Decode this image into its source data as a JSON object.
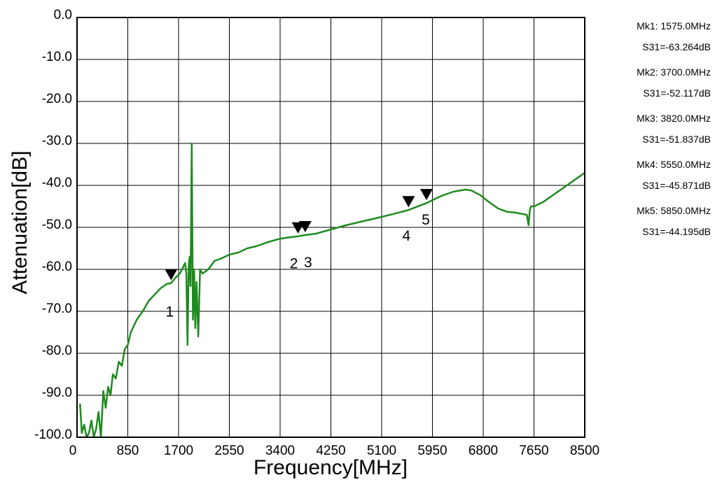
{
  "chart_data": {
    "type": "line",
    "xlabel": "Frequency[MHz]",
    "ylabel": "Attenuation[dB]",
    "xlim": [
      0,
      8500
    ],
    "ylim": [
      -100,
      0
    ],
    "x_ticks": [
      0,
      850,
      1700,
      2550,
      3400,
      4250,
      5100,
      5950,
      6800,
      7650,
      8500
    ],
    "x_tick_labels": [
      "0",
      "850",
      "1700",
      "2550",
      "3400",
      "4250",
      "5100",
      "5950",
      "6800",
      "7650",
      "8500"
    ],
    "y_ticks": [
      0,
      -10,
      -20,
      -30,
      -40,
      -50,
      -60,
      -70,
      -80,
      -90,
      -100
    ],
    "y_tick_labels": [
      "0.0",
      "-10.0",
      "-20.0",
      "-30.0",
      "-40.0",
      "-50.0",
      "-60.0",
      "-70.0",
      "-80.0",
      "-90.0",
      "-100.0"
    ],
    "grid": true,
    "series_color": "#1f8a1f",
    "series": [
      {
        "x": [
          50,
          80,
          120,
          160,
          200,
          240,
          280,
          320,
          360,
          400,
          440,
          480,
          520,
          560,
          600,
          650,
          700,
          750,
          800,
          850,
          900,
          1000,
          1100,
          1200,
          1300,
          1400,
          1500,
          1575,
          1650,
          1720,
          1760,
          1790,
          1810,
          1830,
          1850,
          1870,
          1885,
          1900,
          1920,
          1940,
          1960,
          1980,
          2000,
          2030,
          2060,
          2100,
          2200,
          2300,
          2400,
          2550,
          2700,
          2850,
          3000,
          3200,
          3400,
          3600,
          3700,
          3820,
          4000,
          4250,
          4500,
          4800,
          5100,
          5300,
          5550,
          5850,
          6100,
          6300,
          6500,
          6600,
          6750,
          6900,
          7050,
          7200,
          7350,
          7450,
          7530,
          7560,
          7580,
          7600,
          7650,
          7800,
          8000,
          8200,
          8400,
          8500
        ],
        "y": [
          -92,
          -99,
          -97,
          -100,
          -99,
          -96,
          -100,
          -98,
          -94,
          -100,
          -89,
          -93,
          -88,
          -90,
          -85,
          -86,
          -82,
          -83,
          -79,
          -78,
          -75,
          -72,
          -70,
          -67.5,
          -66,
          -64.5,
          -63.5,
          -63.264,
          -62,
          -61,
          -60,
          -59,
          -58.5,
          -61,
          -78,
          -59,
          -57,
          -64,
          -30,
          -72,
          -60,
          -74,
          -63,
          -76,
          -60,
          -61,
          -60,
          -58,
          -57.5,
          -56.5,
          -56,
          -55,
          -54.5,
          -53.5,
          -52.7,
          -52.3,
          -52.117,
          -51.837,
          -51.5,
          -50.5,
          -49.5,
          -48.5,
          -47.5,
          -46.8,
          -45.871,
          -44.195,
          -42.5,
          -41.5,
          -41,
          -41.2,
          -42.3,
          -44,
          -45.5,
          -46.3,
          -46.5,
          -46.8,
          -47,
          -49.5,
          -46,
          -45,
          -45,
          -44,
          -42,
          -40,
          -38,
          -37
        ]
      }
    ],
    "markers": [
      {
        "label": "1",
        "x": 1575,
        "y": -63.264
      },
      {
        "label": "2",
        "x": 3700,
        "y": -52.117
      },
      {
        "label": "3",
        "x": 3820,
        "y": -51.837
      },
      {
        "label": "4",
        "x": 5550,
        "y": -45.871
      },
      {
        "label": "5",
        "x": 5850,
        "y": -44.195
      }
    ]
  },
  "marker_readouts": [
    {
      "line1": "Mk1: 1575.0MHz",
      "line2": "S31=-63.264dB"
    },
    {
      "line1": "Mk2: 3700.0MHz",
      "line2": "S31=-52.117dB"
    },
    {
      "line1": "Mk3: 3820.0MHz",
      "line2": "S31=-51.837dB"
    },
    {
      "line1": "Mk4: 5550.0MHz",
      "line2": "S31=-45.871dB"
    },
    {
      "line1": "Mk5: 5850.0MHz",
      "line2": "S31=-44.195dB"
    }
  ]
}
